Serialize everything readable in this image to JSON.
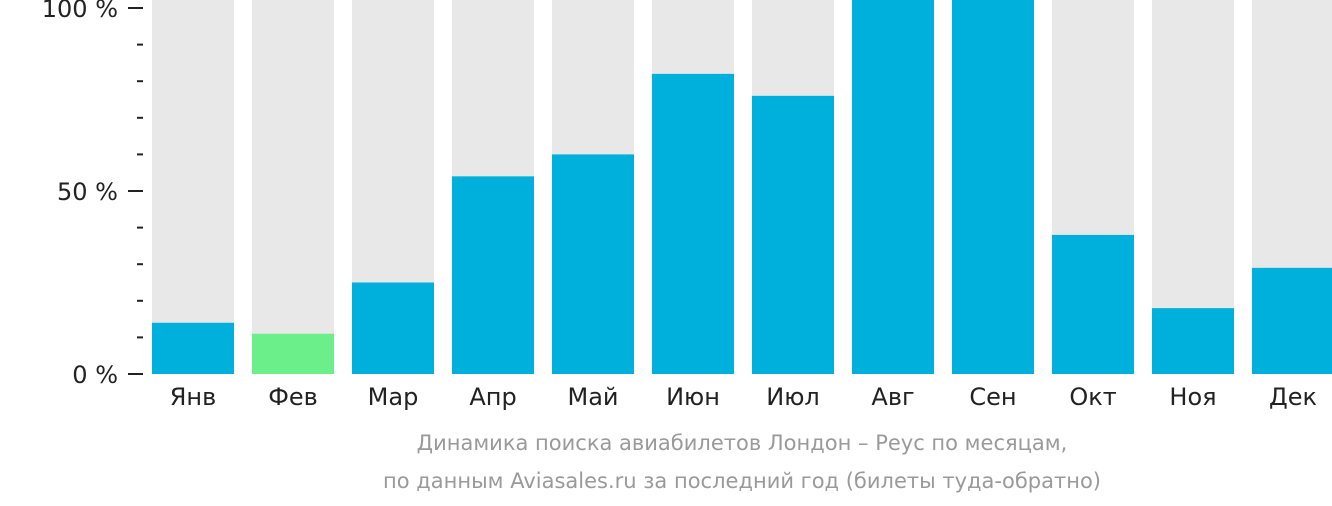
{
  "chart_data": {
    "type": "bar",
    "categories": [
      "Янв",
      "Фев",
      "Мар",
      "Апр",
      "Май",
      "Июн",
      "Июл",
      "Авг",
      "Сен",
      "Окт",
      "Ноя",
      "Дек"
    ],
    "values": [
      14,
      11,
      25,
      54,
      60,
      82,
      76,
      104,
      106,
      38,
      18,
      29
    ],
    "highlight_index": 1,
    "ylim": [
      0,
      100
    ],
    "y_ticks": [
      {
        "value": 0,
        "label": "0 %"
      },
      {
        "value": 50,
        "label": "50 %"
      },
      {
        "value": 100,
        "label": "100 %"
      }
    ],
    "caption_line1": "Динамика поиска авиабилетов Лондон – Реус по месяцам,",
    "caption_line2": "по данным Aviasales.ru за последний год (билеты туда-обратно)",
    "colors": {
      "bar": "#00b0dc",
      "bar_highlight": "#6bef8a",
      "bar_track": "#e8e8e8",
      "axis_text": "#222222",
      "caption_text": "#9a9a9a"
    },
    "grid": false,
    "legend": "none"
  }
}
